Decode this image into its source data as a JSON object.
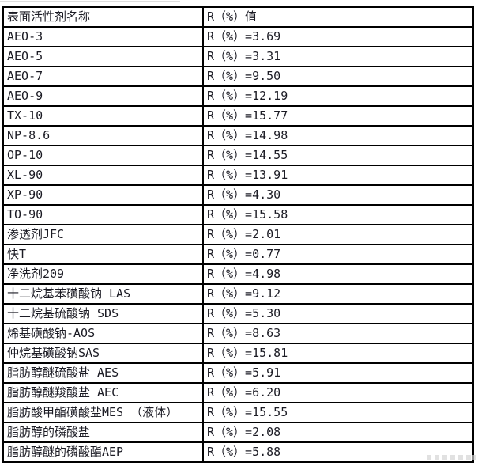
{
  "table": {
    "headers": [
      "表面活性剂名称",
      "R（%）值"
    ],
    "rows": [
      {
        "name": "AEO-3",
        "value": "R（%）=3.69"
      },
      {
        "name": "AEO-5",
        "value": "R（%）=3.31"
      },
      {
        "name": "AEO-7",
        "value": "R（%）=9.50"
      },
      {
        "name": "AEO-9",
        "value": "R（%）=12.19"
      },
      {
        "name": "TX-10",
        "value": "R（%）=15.77"
      },
      {
        "name": "NP-8.6",
        "value": "R（%）=14.98"
      },
      {
        "name": "OP-10",
        "value": "R（%）=14.55"
      },
      {
        "name": "XL-90",
        "value": "R（%）=13.91"
      },
      {
        "name": "XP-90",
        "value": "R（%）=4.30"
      },
      {
        "name": "TO-90",
        "value": "R（%）=15.58"
      },
      {
        "name": "渗透剂JFC",
        "value": "R（%）=2.01"
      },
      {
        "name": "快T",
        "value": "R（%）=0.77"
      },
      {
        "name": "净洗剂209",
        "value": "R（%）=4.98"
      },
      {
        "name": "十二烷基苯磺酸钠 LAS",
        "value": "R（%）=9.12"
      },
      {
        "name": "十二烷基硫酸钠 SDS",
        "value": "R（%）=5.30"
      },
      {
        "name": "烯基磺酸钠-AOS",
        "value": "R（%）=8.63"
      },
      {
        "name": "仲烷基磺酸钠SAS",
        "value": "R（%）=15.81"
      },
      {
        "name": "脂肪醇醚硫酸盐 AES",
        "value": "R（%）=5.91"
      },
      {
        "name": "脂肪醇醚羧酸盐 AEC",
        "value": "R（%）=6.20"
      },
      {
        "name": "脂肪酸甲酯磺酸盐MES （液体）",
        "value": "R（%）=15.55"
      },
      {
        "name": "脂肪醇的磷酸盐",
        "value": "R（%）=2.08"
      },
      {
        "name": "脂肪醇醚的磷酸酯AEP",
        "value": "R（%）=5.88"
      }
    ],
    "colors": {
      "border": "#000000",
      "text": "#1b1b24",
      "background": "#ffffff"
    }
  },
  "chart_data": {
    "type": "table",
    "columns": [
      "表面活性剂名称",
      "R（%）值"
    ],
    "categories": [
      "AEO-3",
      "AEO-5",
      "AEO-7",
      "AEO-9",
      "TX-10",
      "NP-8.6",
      "OP-10",
      "XL-90",
      "XP-90",
      "TO-90",
      "渗透剂JFC",
      "快T",
      "净洗剂209",
      "十二烷基苯磺酸钠 LAS",
      "十二烷基硫酸钠 SDS",
      "烯基磺酸钠-AOS",
      "仲烷基磺酸钠SAS",
      "脂肪醇醚硫酸盐 AES",
      "脂肪醇醚羧酸盐 AEC",
      "脂肪酸甲酯磺酸盐MES （液体）",
      "脂肪醇的磷酸盐",
      "脂肪醇醚的磷酸酯AEP"
    ],
    "values": [
      3.69,
      3.31,
      9.5,
      12.19,
      15.77,
      14.98,
      14.55,
      13.91,
      4.3,
      15.58,
      2.01,
      0.77,
      4.98,
      9.12,
      5.3,
      8.63,
      15.81,
      5.91,
      6.2,
      15.55,
      2.08,
      5.88
    ]
  }
}
